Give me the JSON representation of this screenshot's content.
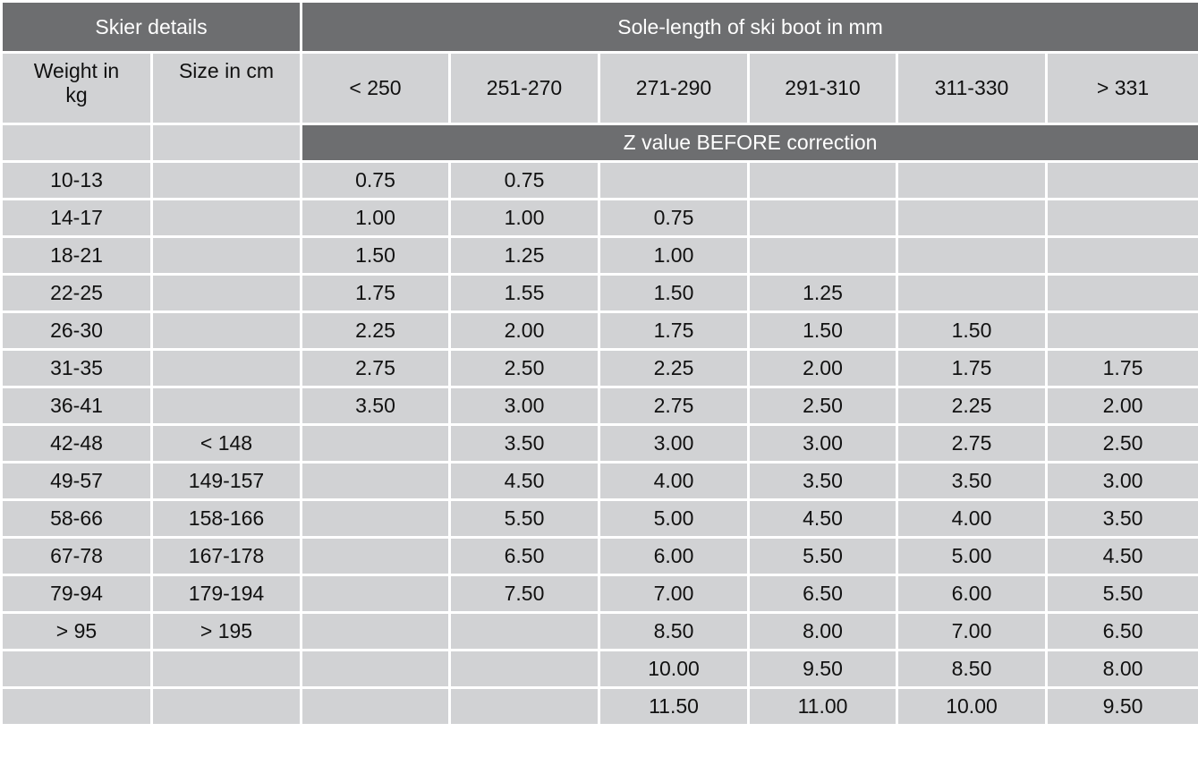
{
  "table": {
    "group_headers": [
      "Skier details",
      "Sole-length of ski boot in mm"
    ],
    "column_headers": [
      "Weight in kg",
      "Size in cm",
      "< 250",
      "251-270",
      "271-290",
      "291-310",
      "311-330",
      "> 331"
    ],
    "subheader": "Z value BEFORE correction",
    "rows": [
      [
        "10-13",
        null,
        "0.75",
        "0.75",
        null,
        null,
        null,
        null
      ],
      [
        "14-17",
        null,
        "1.00",
        "1.00",
        "0.75",
        null,
        null,
        null
      ],
      [
        "18-21",
        null,
        "1.50",
        "1.25",
        "1.00",
        null,
        null,
        null
      ],
      [
        "22-25",
        null,
        "1.75",
        "1.55",
        "1.50",
        "1.25",
        null,
        null
      ],
      [
        "26-30",
        null,
        "2.25",
        "2.00",
        "1.75",
        "1.50",
        "1.50",
        null
      ],
      [
        "31-35",
        null,
        "2.75",
        "2.50",
        "2.25",
        "2.00",
        "1.75",
        "1.75"
      ],
      [
        "36-41",
        null,
        "3.50",
        "3.00",
        "2.75",
        "2.50",
        "2.25",
        "2.00"
      ],
      [
        "42-48",
        "< 148",
        null,
        "3.50",
        "3.00",
        "3.00",
        "2.75",
        "2.50"
      ],
      [
        "49-57",
        "149-157",
        null,
        "4.50",
        "4.00",
        "3.50",
        "3.50",
        "3.00"
      ],
      [
        "58-66",
        "158-166",
        null,
        "5.50",
        "5.00",
        "4.50",
        "4.00",
        "3.50"
      ],
      [
        "67-78",
        "167-178",
        null,
        "6.50",
        "6.00",
        "5.50",
        "5.00",
        "4.50"
      ],
      [
        "79-94",
        "179-194",
        null,
        "7.50",
        "7.00",
        "6.50",
        "6.00",
        "5.50"
      ],
      [
        "> 95",
        "> 195",
        null,
        null,
        "8.50",
        "8.00",
        "7.00",
        "6.50"
      ],
      [
        null,
        null,
        null,
        null,
        "10.00",
        "9.50",
        "8.50",
        "8.00"
      ],
      [
        null,
        null,
        null,
        null,
        "11.50",
        "11.00",
        "10.00",
        "9.50"
      ]
    ]
  }
}
